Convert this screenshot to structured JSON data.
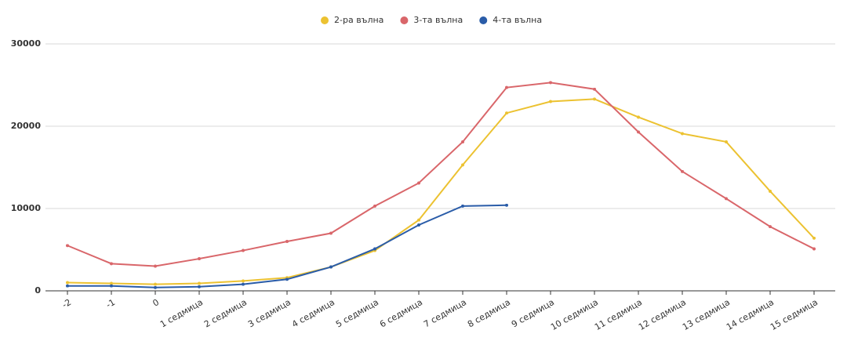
{
  "chart_data": {
    "type": "line",
    "categories": [
      "-2",
      "-1",
      "0",
      "1 седмица",
      "2 седмица",
      "3 седмица",
      "4 седмица",
      "5 седмица",
      "6 седмица",
      "7 седмица",
      "8 седмица",
      "9 седмица",
      "10 седмица",
      "11 седмица",
      "12 седмица",
      "13 седмица",
      "14 седмица",
      "15 седмица"
    ],
    "series": [
      {
        "name": "2-ра вълна",
        "color": "#ecc231",
        "values": [
          1000,
          900,
          800,
          900,
          1200,
          1600,
          2900,
          4900,
          8600,
          15300,
          21600,
          23000,
          23300,
          21100,
          19100,
          18100,
          12100,
          6400
        ]
      },
      {
        "name": "3-та вълна",
        "color": "#d9666a",
        "values": [
          5500,
          3300,
          3000,
          3900,
          4900,
          6000,
          7000,
          10300,
          13100,
          18100,
          24700,
          25300,
          24500,
          19300,
          14500,
          11200,
          7800,
          5100
        ]
      },
      {
        "name": "4-та вълна",
        "color": "#2a5ca8",
        "values": [
          600,
          600,
          400,
          500,
          800,
          1400,
          2900,
          5100,
          8000,
          10300,
          10400,
          null,
          null,
          null,
          null,
          null,
          null,
          null
        ]
      }
    ],
    "ylim": [
      0,
      30000
    ],
    "yticks": [
      0,
      10000,
      20000,
      30000
    ],
    "grid": true,
    "legend": "top"
  }
}
